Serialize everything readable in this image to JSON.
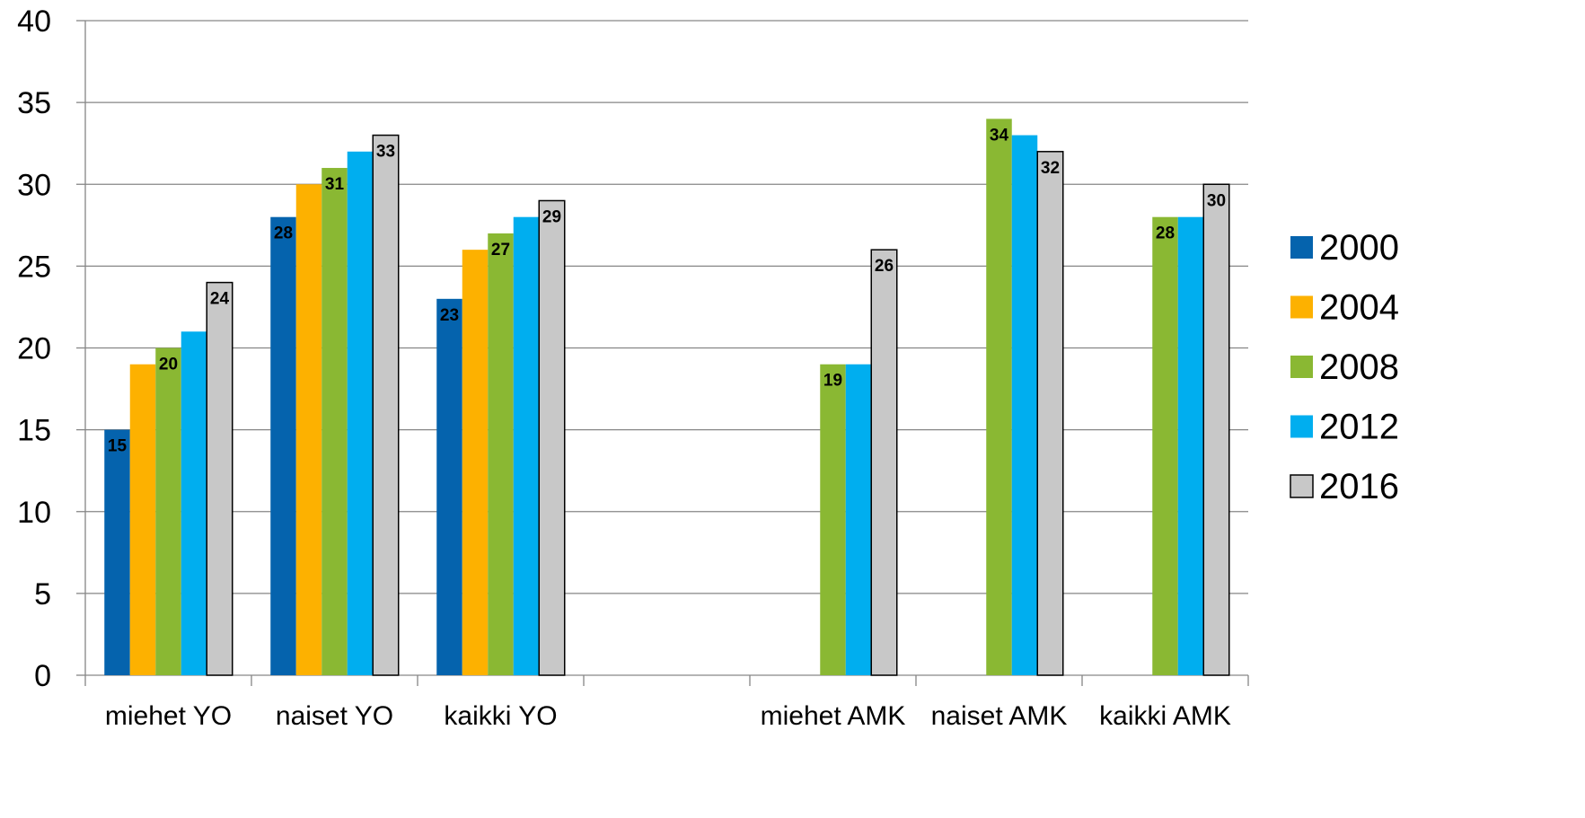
{
  "chart_data": {
    "type": "bar",
    "title": "",
    "xlabel": "",
    "ylabel": "",
    "ylim": [
      0,
      40
    ],
    "yticks": [
      0,
      5,
      10,
      15,
      20,
      25,
      30,
      35,
      40
    ],
    "grid": true,
    "legend_position": "right",
    "categories": [
      "miehet YO",
      "naiset YO",
      "kaikki YO",
      "",
      "miehet AMK",
      "naiset AMK",
      "kaikki AMK"
    ],
    "series": [
      {
        "name": "2000",
        "color": "#0563AD",
        "values": [
          15,
          28,
          23,
          null,
          null,
          null,
          null
        ]
      },
      {
        "name": "2004",
        "color": "#FDB100",
        "values": [
          19,
          30,
          26,
          null,
          null,
          null,
          null
        ]
      },
      {
        "name": "2008",
        "color": "#8AB833",
        "values": [
          20,
          31,
          27,
          null,
          19,
          34,
          28
        ]
      },
      {
        "name": "2012",
        "color": "#00AEEF",
        "values": [
          21,
          32,
          28,
          null,
          19,
          33,
          28
        ]
      },
      {
        "name": "2016",
        "color": "#C8C8C8",
        "values": [
          24,
          33,
          29,
          null,
          26,
          32,
          30
        ]
      }
    ],
    "data_labels": [
      {
        "series": "2000",
        "category": "miehet YO",
        "text": "15"
      },
      {
        "series": "2008",
        "category": "miehet YO",
        "text": "20"
      },
      {
        "series": "2016",
        "category": "miehet YO",
        "text": "24"
      },
      {
        "series": "2000",
        "category": "naiset YO",
        "text": "28"
      },
      {
        "series": "2008",
        "category": "naiset YO",
        "text": "31"
      },
      {
        "series": "2016",
        "category": "naiset YO",
        "text": "33"
      },
      {
        "series": "2000",
        "category": "kaikki YO",
        "text": "23"
      },
      {
        "series": "2008",
        "category": "kaikki YO",
        "text": "27"
      },
      {
        "series": "2016",
        "category": "kaikki YO",
        "text": "29"
      },
      {
        "series": "2008",
        "category": "miehet AMK",
        "text": "19"
      },
      {
        "series": "2016",
        "category": "miehet AMK",
        "text": "26"
      },
      {
        "series": "2008",
        "category": "naiset AMK",
        "text": "34"
      },
      {
        "series": "2016",
        "category": "naiset AMK",
        "text": "32"
      },
      {
        "series": "2008",
        "category": "kaikki AMK",
        "text": "28"
      },
      {
        "series": "2016",
        "category": "kaikki AMK",
        "text": "30"
      }
    ]
  }
}
